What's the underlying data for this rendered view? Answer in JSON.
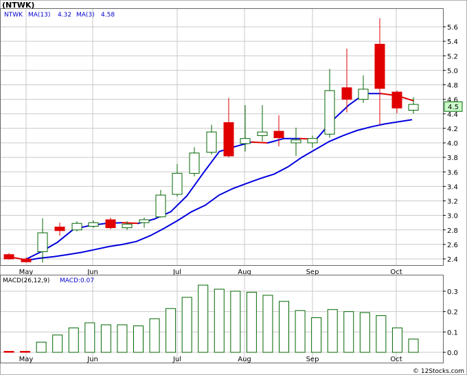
{
  "symbol_label": "(NTWK)",
  "legend": {
    "ma13_label": "MA(13)",
    "ma13_value": "4.32",
    "ma3_label": "MA(3)",
    "ma3_value": "4.58"
  },
  "macd_legend": {
    "label": "MACD(26,12,9)",
    "value_label": "MACD:0.07"
  },
  "last_price_label": "4.5",
  "credit": "© 12Stocks.com",
  "colors": {
    "up": "#006600",
    "down": "#e00000",
    "ma13": "#0000dd",
    "ma3": "#e00000",
    "grid": "#c8c8c8",
    "last_price_bg": "#ccffcc"
  },
  "chart_data": [
    {
      "type": "candlestick",
      "title": "(NTWK)",
      "x_ticks": [
        "May",
        "Jun",
        "Jul",
        "Aug",
        "Sep",
        "Oct"
      ],
      "y_ticks": [
        "2.4",
        "2.6",
        "2.8",
        "3.0",
        "3.2",
        "3.4",
        "3.6",
        "3.8",
        "4.0",
        "4.2",
        "4.4",
        "4.6",
        "4.8",
        "5.0",
        "5.2",
        "5.4",
        "5.6"
      ],
      "ylim": [
        2.35,
        5.8
      ],
      "grid": true,
      "candles": [
        {
          "open": 2.46,
          "high": 2.48,
          "low": 2.39,
          "close": 2.4
        },
        {
          "open": 2.4,
          "high": 2.42,
          "low": 2.35,
          "close": 2.36
        },
        {
          "open": 2.5,
          "high": 2.96,
          "low": 2.35,
          "close": 2.76
        },
        {
          "open": 2.84,
          "high": 2.9,
          "low": 2.72,
          "close": 2.79
        },
        {
          "open": 2.8,
          "high": 2.92,
          "low": 2.78,
          "close": 2.89
        },
        {
          "open": 2.85,
          "high": 2.93,
          "low": 2.83,
          "close": 2.9
        },
        {
          "open": 2.94,
          "high": 2.97,
          "low": 2.81,
          "close": 2.83
        },
        {
          "open": 2.83,
          "high": 2.92,
          "low": 2.8,
          "close": 2.88
        },
        {
          "open": 2.9,
          "high": 2.97,
          "low": 2.83,
          "close": 2.94
        },
        {
          "open": 2.98,
          "high": 3.35,
          "low": 2.97,
          "close": 3.28
        },
        {
          "open": 3.29,
          "high": 3.71,
          "low": 3.26,
          "close": 3.58
        },
        {
          "open": 3.58,
          "high": 3.94,
          "low": 3.54,
          "close": 3.86
        },
        {
          "open": 3.87,
          "high": 4.25,
          "low": 3.84,
          "close": 4.15
        },
        {
          "open": 4.28,
          "high": 4.62,
          "low": 3.8,
          "close": 3.82
        },
        {
          "open": 3.99,
          "high": 4.52,
          "low": 3.88,
          "close": 4.06
        },
        {
          "open": 4.1,
          "high": 4.52,
          "low": 4.02,
          "close": 4.15
        },
        {
          "open": 4.16,
          "high": 4.38,
          "low": 3.95,
          "close": 4.07
        },
        {
          "open": 4.0,
          "high": 4.21,
          "low": 3.82,
          "close": 4.04
        },
        {
          "open": 4.0,
          "high": 4.1,
          "low": 3.93,
          "close": 4.06
        },
        {
          "open": 4.12,
          "high": 5.02,
          "low": 4.07,
          "close": 4.72
        },
        {
          "open": 4.76,
          "high": 5.3,
          "low": 4.42,
          "close": 4.6
        },
        {
          "open": 4.6,
          "high": 4.93,
          "low": 4.55,
          "close": 4.74
        },
        {
          "open": 5.36,
          "high": 5.72,
          "low": 4.25,
          "close": 4.75
        },
        {
          "open": 4.7,
          "high": 4.72,
          "low": 4.41,
          "close": 4.48
        },
        {
          "open": 4.45,
          "high": 4.63,
          "low": 4.4,
          "close": 4.53
        }
      ],
      "ma13": [
        2.38,
        2.41,
        2.43,
        2.46,
        2.49,
        2.53,
        2.57,
        2.6,
        2.64,
        2.72,
        2.82,
        2.93,
        3.05,
        3.14,
        3.28,
        3.37,
        3.44,
        3.51,
        3.57,
        3.67,
        3.8,
        3.91,
        4.02,
        4.1,
        4.17,
        4.22,
        4.26,
        4.29,
        4.32
      ],
      "ma3": [
        2.43,
        2.39,
        2.5,
        2.63,
        2.81,
        2.86,
        2.89,
        2.9,
        2.89,
        2.95,
        3.05,
        3.27,
        3.58,
        3.88,
        3.95,
        4.01,
        4.0,
        4.06,
        4.06,
        4.05,
        4.31,
        4.52,
        4.68,
        4.68,
        4.65,
        4.58
      ],
      "last_price": 4.5
    },
    {
      "type": "bar",
      "title": "MACD(26,12,9)",
      "x_ticks": [
        "May",
        "Jun",
        "Jul",
        "Aug",
        "Sep",
        "Oct"
      ],
      "y_ticks": [
        "0.0",
        "0.1",
        "0.2",
        "0.3"
      ],
      "ylim": [
        -0.01,
        0.36
      ],
      "values": [
        0.0,
        0.0,
        0.05,
        0.085,
        0.12,
        0.145,
        0.135,
        0.135,
        0.13,
        0.165,
        0.215,
        0.27,
        0.33,
        0.31,
        0.3,
        0.295,
        0.28,
        0.25,
        0.205,
        0.17,
        0.21,
        0.2,
        0.195,
        0.18,
        0.12,
        0.065
      ]
    }
  ]
}
